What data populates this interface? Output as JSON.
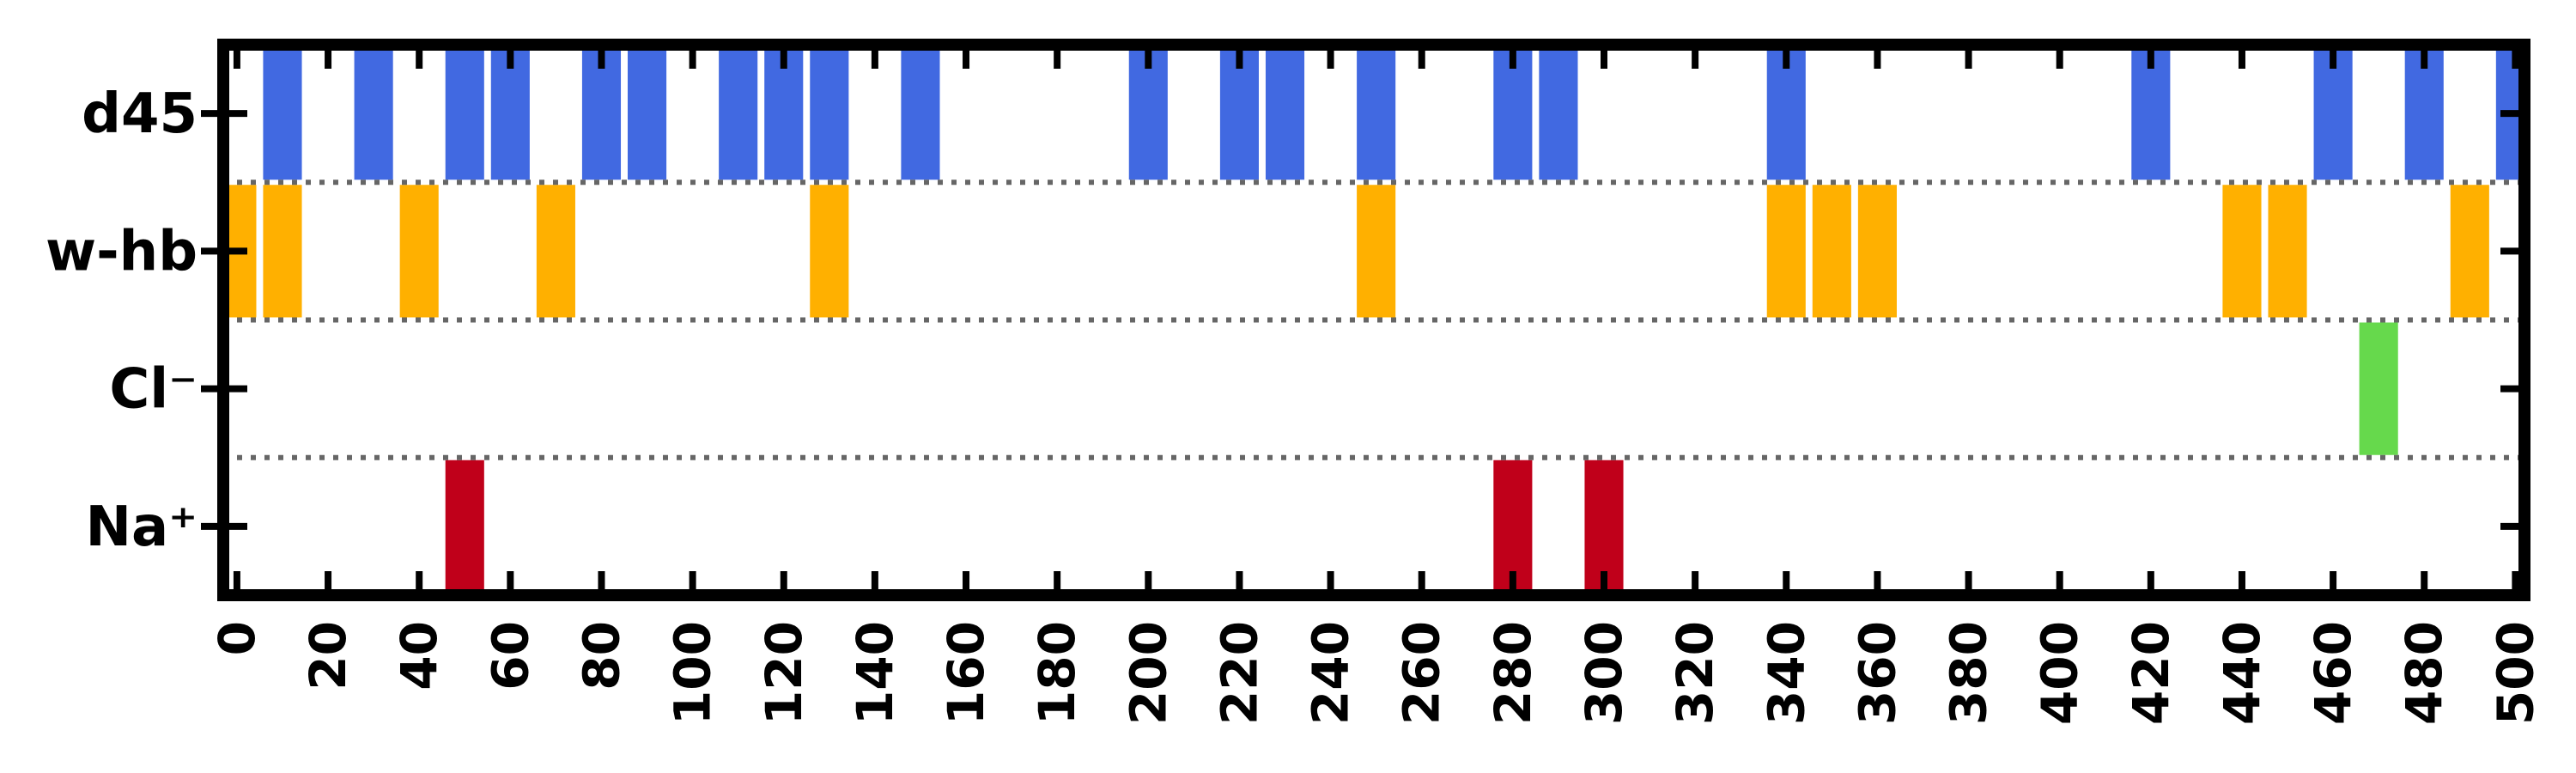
{
  "chart_data": {
    "type": "bar",
    "title": "",
    "xlabel": "",
    "ylabel": "",
    "xlim": [
      -3,
      502
    ],
    "xticks": [
      0,
      20,
      40,
      60,
      80,
      100,
      120,
      140,
      160,
      180,
      200,
      220,
      240,
      260,
      280,
      300,
      320,
      340,
      360,
      380,
      400,
      420,
      440,
      460,
      480,
      500
    ],
    "bar_width": 8.5,
    "grid": false,
    "legend": "none",
    "rows": [
      {
        "label": "d45",
        "color": "#4169E1",
        "x": [
          10,
          30,
          50,
          60,
          80,
          90,
          110,
          120,
          130,
          150,
          200,
          220,
          230,
          250,
          280,
          290,
          340,
          420,
          460,
          480,
          500
        ]
      },
      {
        "label": "w-hb",
        "color": "#FFB000",
        "x": [
          0,
          10,
          40,
          70,
          130,
          250,
          340,
          350,
          360,
          440,
          450,
          490
        ]
      },
      {
        "label": "Cl⁻",
        "color": "#66D94C",
        "x": [
          470
        ]
      },
      {
        "label": "Na⁺",
        "color": "#C0001A",
        "x": [
          50,
          280,
          300
        ]
      }
    ]
  }
}
